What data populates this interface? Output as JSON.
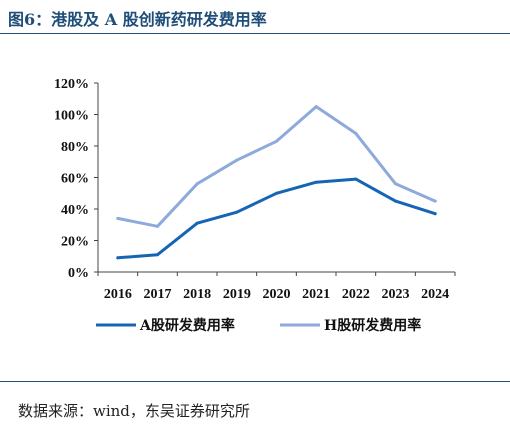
{
  "figure": {
    "title": "图6：港股及 A 股创新药研发费用率",
    "source": "数据来源：wind，东吴证券研究所"
  },
  "colors": {
    "a_share": "#1565b4",
    "h_share": "#8ea9db",
    "axis": "#444444",
    "title": "#1f4e79"
  },
  "chart_data": {
    "type": "line",
    "title": "",
    "xlabel": "",
    "ylabel": "",
    "x": [
      "2016",
      "2017",
      "2018",
      "2019",
      "2020",
      "2021",
      "2022",
      "2023",
      "2024"
    ],
    "ylim": [
      0,
      120
    ],
    "yticks": [
      0,
      20,
      40,
      60,
      80,
      100,
      120
    ],
    "ytick_labels": [
      "0%",
      "20%",
      "40%",
      "60%",
      "80%",
      "100%",
      "120%"
    ],
    "grid": false,
    "legend": "bottom",
    "series": [
      {
        "name": "A股研发费用率",
        "color": "#1565b4",
        "values": [
          9,
          11,
          31,
          38,
          50,
          57,
          59,
          45,
          37
        ]
      },
      {
        "name": "H股研发费用率",
        "color": "#8ea9db",
        "values": [
          34,
          29,
          56,
          71,
          83,
          105,
          88,
          56,
          45
        ]
      }
    ]
  }
}
